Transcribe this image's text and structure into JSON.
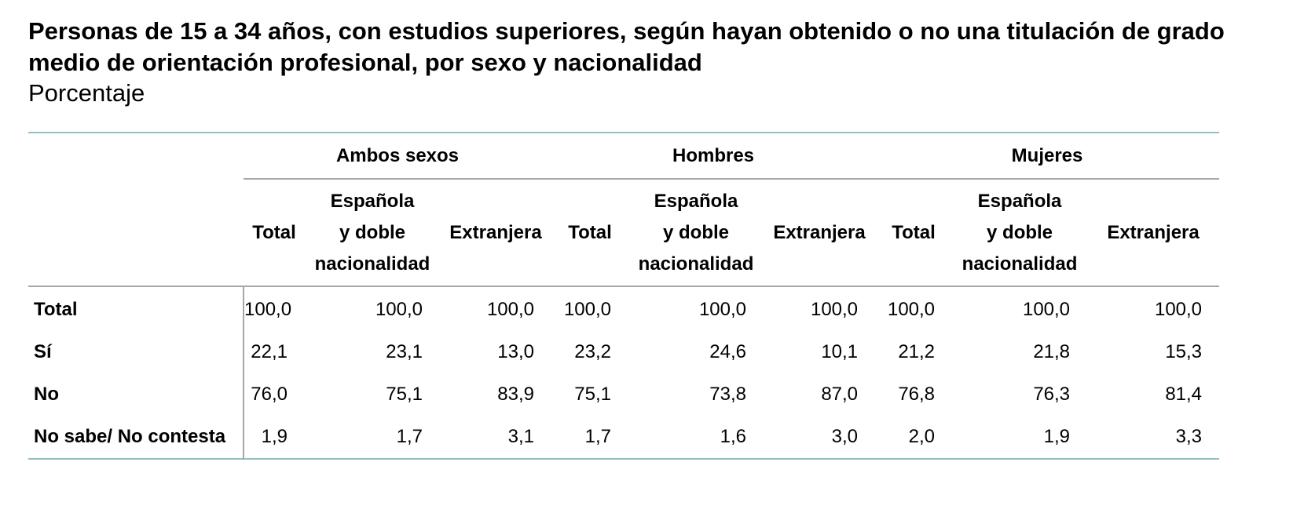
{
  "title": "Personas de 15 a 34 años, con estudios superiores, según hayan obtenido o no una titulación de grado medio de orientación profesional, por sexo y nacionalidad",
  "subtitle": "Porcentaje",
  "table": {
    "groups": [
      "Ambos sexos",
      "Hombres",
      "Mujeres"
    ],
    "subheaders": {
      "total": "Total",
      "espanola": [
        "Española",
        "y doble",
        "nacionalidad"
      ],
      "extranjera": "Extranjera"
    },
    "rows": [
      {
        "label": "Total",
        "values": [
          "100,0",
          "100,0",
          "100,0",
          "100,0",
          "100,0",
          "100,0",
          "100,0",
          "100,0",
          "100,0"
        ]
      },
      {
        "label": "Sí",
        "values": [
          "22,1",
          "23,1",
          "13,0",
          "23,2",
          "24,6",
          "10,1",
          "21,2",
          "21,8",
          "15,3"
        ]
      },
      {
        "label": "No",
        "values": [
          "76,0",
          "75,1",
          "83,9",
          "75,1",
          "73,8",
          "87,0",
          "76,8",
          "76,3",
          "81,4"
        ]
      },
      {
        "label": "No sabe/ No contesta",
        "values": [
          "1,9",
          "1,7",
          "3,1",
          "1,7",
          "1,6",
          "3,0",
          "2,0",
          "1,9",
          "3,3"
        ]
      }
    ]
  },
  "colors": {
    "outer_rule": "#8fbfbe",
    "inner_rule": "#a6a6a6"
  }
}
